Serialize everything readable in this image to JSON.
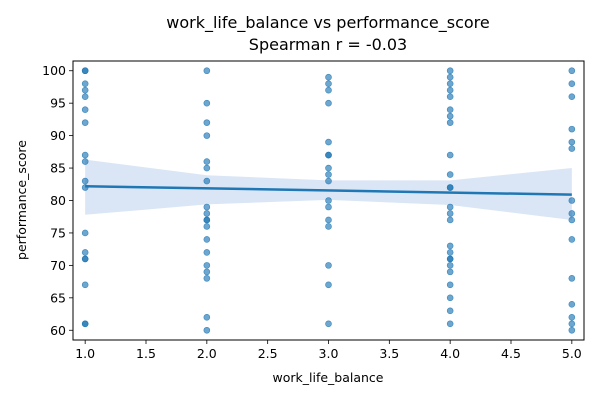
{
  "chart_data": {
    "type": "scatter",
    "title": "work_life_balance vs performance_score",
    "subtitle": "Spearman r = -0.03",
    "xlabel": "work_life_balance",
    "ylabel": "performance_score",
    "xlim": [
      0.9,
      5.1
    ],
    "ylim": [
      58.5,
      101.5
    ],
    "x_ticks": [
      1.0,
      1.5,
      2.0,
      2.5,
      3.0,
      3.5,
      4.0,
      4.5,
      5.0
    ],
    "y_ticks": [
      60,
      65,
      70,
      75,
      80,
      85,
      90,
      95,
      100
    ],
    "grid": false,
    "series": [
      {
        "type": "scatter",
        "color": "#1f77b4",
        "points": [
          [
            1,
            100
          ],
          [
            1,
            100
          ],
          [
            1,
            98
          ],
          [
            1,
            97
          ],
          [
            1,
            96
          ],
          [
            1,
            94
          ],
          [
            1,
            92
          ],
          [
            1,
            87
          ],
          [
            1,
            86
          ],
          [
            1,
            83
          ],
          [
            1,
            82
          ],
          [
            1,
            75
          ],
          [
            1,
            72
          ],
          [
            1,
            71
          ],
          [
            1,
            71
          ],
          [
            1,
            67
          ],
          [
            1,
            61
          ],
          [
            1,
            61
          ],
          [
            2,
            100
          ],
          [
            2,
            95
          ],
          [
            2,
            92
          ],
          [
            2,
            90
          ],
          [
            2,
            86
          ],
          [
            2,
            85
          ],
          [
            2,
            83
          ],
          [
            2,
            79
          ],
          [
            2,
            78
          ],
          [
            2,
            77
          ],
          [
            2,
            77
          ],
          [
            2,
            76
          ],
          [
            2,
            74
          ],
          [
            2,
            72
          ],
          [
            2,
            70
          ],
          [
            2,
            69
          ],
          [
            2,
            68
          ],
          [
            2,
            62
          ],
          [
            2,
            60
          ],
          [
            3,
            99
          ],
          [
            3,
            98
          ],
          [
            3,
            97
          ],
          [
            3,
            95
          ],
          [
            3,
            89
          ],
          [
            3,
            87
          ],
          [
            3,
            87
          ],
          [
            3,
            85
          ],
          [
            3,
            84
          ],
          [
            3,
            83
          ],
          [
            3,
            80
          ],
          [
            3,
            79
          ],
          [
            3,
            77
          ],
          [
            3,
            76
          ],
          [
            3,
            70
          ],
          [
            3,
            67
          ],
          [
            3,
            61
          ],
          [
            4,
            100
          ],
          [
            4,
            99
          ],
          [
            4,
            98
          ],
          [
            4,
            97
          ],
          [
            4,
            96
          ],
          [
            4,
            94
          ],
          [
            4,
            93
          ],
          [
            4,
            92
          ],
          [
            4,
            87
          ],
          [
            4,
            84
          ],
          [
            4,
            82
          ],
          [
            4,
            82
          ],
          [
            4,
            79
          ],
          [
            4,
            78
          ],
          [
            4,
            77
          ],
          [
            4,
            73
          ],
          [
            4,
            72
          ],
          [
            4,
            71
          ],
          [
            4,
            71
          ],
          [
            4,
            70
          ],
          [
            4,
            69
          ],
          [
            4,
            67
          ],
          [
            4,
            65
          ],
          [
            4,
            63
          ],
          [
            4,
            61
          ],
          [
            5,
            100
          ],
          [
            5,
            98
          ],
          [
            5,
            96
          ],
          [
            5,
            91
          ],
          [
            5,
            89
          ],
          [
            5,
            88
          ],
          [
            5,
            80
          ],
          [
            5,
            78
          ],
          [
            5,
            77
          ],
          [
            5,
            74
          ],
          [
            5,
            68
          ],
          [
            5,
            64
          ],
          [
            5,
            62
          ],
          [
            5,
            61
          ],
          [
            5,
            60
          ]
        ]
      },
      {
        "type": "regression-line",
        "color": "#1f77b4",
        "x": [
          1.0,
          5.0
        ],
        "y": [
          82.2,
          80.9
        ]
      },
      {
        "type": "confidence-band",
        "color": "#aec7e8",
        "x": [
          1.0,
          2.0,
          3.0,
          4.0,
          5.0
        ],
        "upper": [
          86.3,
          83.9,
          83.1,
          83.1,
          85.0
        ],
        "lower": [
          77.8,
          79.4,
          80.1,
          79.3,
          77.0
        ]
      }
    ]
  }
}
